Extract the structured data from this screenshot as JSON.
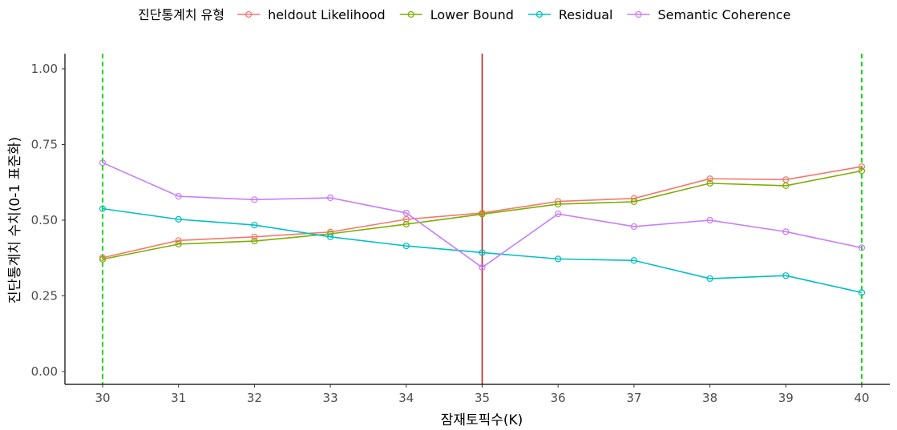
{
  "chart_data": {
    "type": "line",
    "xlabel": "잠재토픽수(K)",
    "ylabel": "진단통계치 수치(0-1 표준화)",
    "x": [
      30,
      31,
      32,
      33,
      34,
      35,
      36,
      37,
      38,
      39,
      40
    ],
    "xlim": [
      30,
      40
    ],
    "ylim": [
      0,
      1
    ],
    "y_ticks": [
      "0.00",
      "0.25",
      "0.50",
      "0.75",
      "1.00"
    ],
    "grid": false,
    "legend": {
      "title": "진단통계치 유형",
      "position": "top"
    },
    "series": [
      {
        "name": "heldout Likelihood",
        "color": "#F8766D",
        "values": [
          0.376,
          0.433,
          0.445,
          0.461,
          0.503,
          0.524,
          0.562,
          0.572,
          0.637,
          0.634,
          0.677
        ]
      },
      {
        "name": "Lower Bound",
        "color": "#7CAE00",
        "values": [
          0.371,
          0.421,
          0.431,
          0.455,
          0.487,
          0.52,
          0.553,
          0.561,
          0.622,
          0.614,
          0.663
        ]
      },
      {
        "name": "Residual",
        "color": "#00BFC4",
        "values": [
          0.538,
          0.503,
          0.484,
          0.445,
          0.415,
          0.393,
          0.372,
          0.367,
          0.307,
          0.317,
          0.261
        ]
      },
      {
        "name": "Semantic Coherence",
        "color": "#C77CFF",
        "values": [
          0.69,
          0.579,
          0.568,
          0.574,
          0.524,
          0.344,
          0.521,
          0.479,
          0.5,
          0.462,
          0.409
        ]
      }
    ],
    "reference_lines": [
      {
        "x": 30,
        "color": "#00E000",
        "style": "dashed"
      },
      {
        "x": 40,
        "color": "#00E000",
        "style": "dashed"
      },
      {
        "x": 35,
        "color": "#B22222",
        "style": "solid"
      }
    ]
  }
}
